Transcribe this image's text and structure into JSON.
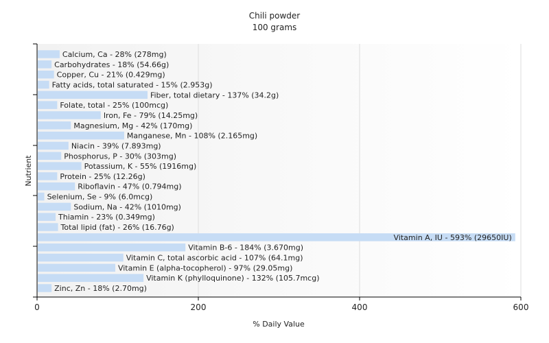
{
  "chart_data": {
    "type": "bar",
    "orientation": "horizontal",
    "title": "Chili powder",
    "subtitle": "100 grams",
    "xlabel": "% Daily Value",
    "ylabel": "Nutrient",
    "xlim": [
      0,
      600
    ],
    "xticks": [
      0,
      200,
      400,
      600
    ],
    "grid": true,
    "bar_color": "#c6dcf5",
    "plot_background": [
      "#f2f2f2",
      "#ffffff"
    ],
    "categories": [
      "Calcium, Ca - 28% (278mg)",
      "Carbohydrates - 18% (54.66g)",
      "Copper, Cu - 21% (0.429mg)",
      "Fatty acids, total saturated - 15% (2.953g)",
      "Fiber, total dietary - 137% (34.2g)",
      "Folate, total - 25% (100mcg)",
      "Iron, Fe - 79% (14.25mg)",
      "Magnesium, Mg - 42% (170mg)",
      "Manganese, Mn - 108% (2.165mg)",
      "Niacin - 39% (7.893mg)",
      "Phosphorus, P - 30% (303mg)",
      "Potassium, K - 55% (1916mg)",
      "Protein - 25% (12.26g)",
      "Riboflavin - 47% (0.794mg)",
      "Selenium, Se - 9% (6.0mcg)",
      "Sodium, Na - 42% (1010mg)",
      "Thiamin - 23% (0.349mg)",
      "Total lipid (fat) - 26% (16.76g)",
      "Vitamin A, IU - 593% (29650IU)",
      "Vitamin B-6 - 184% (3.670mg)",
      "Vitamin C, total ascorbic acid - 107% (64.1mg)",
      "Vitamin E (alpha-tocopherol) - 97% (29.05mg)",
      "Vitamin K (phylloquinone) - 132% (105.7mcg)",
      "Zinc, Zn - 18% (2.70mg)"
    ],
    "values": [
      28,
      18,
      21,
      15,
      137,
      25,
      79,
      42,
      108,
      39,
      30,
      55,
      25,
      47,
      9,
      42,
      23,
      26,
      593,
      184,
      107,
      97,
      132,
      18
    ]
  }
}
